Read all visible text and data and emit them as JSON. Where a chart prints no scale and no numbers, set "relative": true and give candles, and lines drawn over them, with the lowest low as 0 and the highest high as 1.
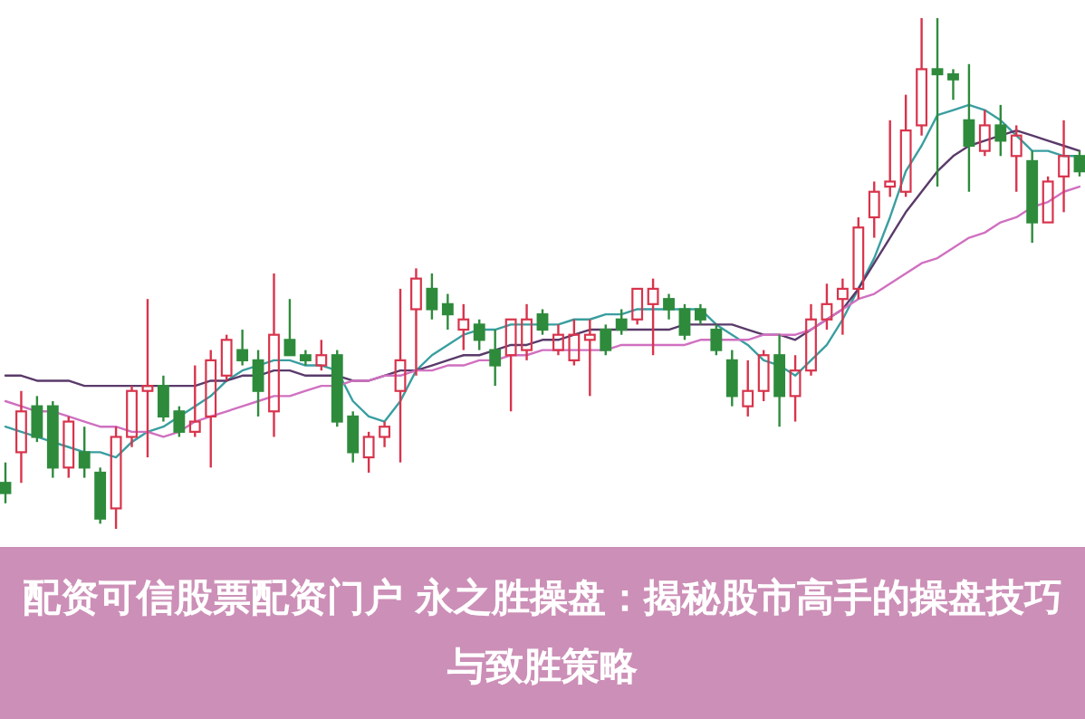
{
  "chart_data": {
    "type": "candlestick",
    "title": "配资可信股票配资门户 永之胜操盘：揭秘股市高手的操盘技巧与致胜策略",
    "relative": true,
    "categories": [
      null,
      null,
      null,
      null,
      null,
      null,
      null,
      null,
      null,
      null,
      null,
      null,
      null,
      null,
      null,
      null,
      null,
      null,
      null,
      null,
      null,
      null,
      null,
      null,
      null,
      null,
      null,
      null,
      null,
      null,
      null,
      null,
      null,
      null,
      null,
      null,
      null,
      null,
      null,
      null,
      null,
      null,
      null,
      null,
      null,
      null,
      null,
      null,
      null,
      null,
      null,
      null,
      null,
      null,
      null,
      null,
      null,
      null,
      null,
      null,
      null,
      null,
      null,
      null,
      null,
      null,
      null,
      null,
      null
    ],
    "ohlc": [
      [
        0.09,
        0.13,
        0.05,
        0.07
      ],
      [
        0.15,
        0.27,
        0.09,
        0.23
      ],
      [
        0.24,
        0.26,
        0.17,
        0.18
      ],
      [
        0.24,
        0.25,
        0.1,
        0.12
      ],
      [
        0.12,
        0.22,
        0.1,
        0.21
      ],
      [
        0.15,
        0.2,
        0.1,
        0.12
      ],
      [
        0.11,
        0.12,
        0.01,
        0.02
      ],
      [
        0.04,
        0.2,
        0,
        0.18
      ],
      [
        0.18,
        0.28,
        0.16,
        0.27
      ],
      [
        0.27,
        0.45,
        0.14,
        0.28
      ],
      [
        0.28,
        0.3,
        0.21,
        0.22
      ],
      [
        0.23,
        0.24,
        0.18,
        0.19
      ],
      [
        0.19,
        0.32,
        0.18,
        0.21
      ],
      [
        0.22,
        0.35,
        0.12,
        0.33
      ],
      [
        0.3,
        0.38,
        0.29,
        0.37
      ],
      [
        0.35,
        0.39,
        0.32,
        0.33
      ],
      [
        0.33,
        0.35,
        0.22,
        0.27
      ],
      [
        0.23,
        0.5,
        0.18,
        0.38
      ],
      [
        0.37,
        0.45,
        0.34,
        0.34
      ],
      [
        0.34,
        0.35,
        0.32,
        0.33
      ],
      [
        0.32,
        0.37,
        0.31,
        0.34
      ],
      [
        0.34,
        0.35,
        0.2,
        0.21
      ],
      [
        0.22,
        0.23,
        0.13,
        0.15
      ],
      [
        0.14,
        0.19,
        0.11,
        0.18
      ],
      [
        0.18,
        0.21,
        0.16,
        0.2
      ],
      [
        0.27,
        0.47,
        0.13,
        0.33
      ],
      [
        0.43,
        0.51,
        0.3,
        0.49
      ],
      [
        0.47,
        0.5,
        0.41,
        0.43
      ],
      [
        0.44,
        0.46,
        0.39,
        0.42
      ],
      [
        0.39,
        0.44,
        0.35,
        0.41
      ],
      [
        0.4,
        0.41,
        0.35,
        0.37
      ],
      [
        0.35,
        0.39,
        0.28,
        0.32
      ],
      [
        0.34,
        0.41,
        0.23,
        0.41
      ],
      [
        0.35,
        0.44,
        0.33,
        0.41
      ],
      [
        0.42,
        0.43,
        0.38,
        0.39
      ],
      [
        0.35,
        0.4,
        0.34,
        0.38
      ],
      [
        0.33,
        0.41,
        0.32,
        0.38
      ],
      [
        0.37,
        0.41,
        0.26,
        0.38
      ],
      [
        0.39,
        0.4,
        0.34,
        0.35
      ],
      [
        0.41,
        0.43,
        0.38,
        0.39
      ],
      [
        0.41,
        0.47,
        0.4,
        0.47
      ],
      [
        0.44,
        0.49,
        0.34,
        0.47
      ],
      [
        0.45,
        0.46,
        0.41,
        0.43
      ],
      [
        0.43,
        0.44,
        0.37,
        0.38
      ],
      [
        0.43,
        0.44,
        0.4,
        0.41
      ],
      [
        0.39,
        0.4,
        0.34,
        0.35
      ],
      [
        0.33,
        0.35,
        0.24,
        0.26
      ],
      [
        0.24,
        0.33,
        0.22,
        0.27
      ],
      [
        0.27,
        0.35,
        0.25,
        0.34
      ],
      [
        0.34,
        0.38,
        0.2,
        0.26
      ],
      [
        0.26,
        0.34,
        0.21,
        0.31
      ],
      [
        0.31,
        0.44,
        0.3,
        0.41
      ],
      [
        0.41,
        0.48,
        0.39,
        0.44
      ],
      [
        0.45,
        0.49,
        0.38,
        0.47
      ],
      [
        0.47,
        0.61,
        0.45,
        0.59
      ],
      [
        0.61,
        0.68,
        0.57,
        0.66
      ],
      [
        0.67,
        0.8,
        0.65,
        0.68
      ],
      [
        0.66,
        0.85,
        0.65,
        0.78
      ],
      [
        0.79,
        1,
        0.77,
        0.9
      ],
      [
        0.9,
        1,
        0.67,
        0.89
      ],
      [
        0.89,
        0.9,
        0.84,
        0.88
      ],
      [
        0.8,
        0.91,
        0.66,
        0.75
      ],
      [
        0.74,
        0.82,
        0.73,
        0.79
      ],
      [
        0.79,
        0.83,
        0.73,
        0.76
      ],
      [
        0.73,
        0.79,
        0.66,
        0.77
      ],
      [
        0.72,
        0.74,
        0.56,
        0.6
      ],
      [
        0.6,
        0.69,
        0.6,
        0.68
      ],
      [
        0.69,
        0.8,
        0.62,
        0.73
      ],
      [
        0.73,
        0.74,
        0.69,
        0.7
      ]
    ],
    "series": [
      {
        "type": "line",
        "color": "#3a9ea0",
        "values": [
          0.2,
          0.19,
          0.18,
          0.17,
          0.16,
          0.15,
          0.15,
          0.14,
          0.17,
          0.19,
          0.2,
          0.22,
          0.24,
          0.26,
          0.29,
          0.31,
          0.32,
          0.33,
          0.33,
          0.32,
          0.32,
          0.31,
          0.25,
          0.22,
          0.21,
          0.25,
          0.31,
          0.34,
          0.36,
          0.38,
          0.39,
          0.39,
          0.4,
          0.4,
          0.4,
          0.4,
          0.41,
          0.41,
          0.42,
          0.42,
          0.43,
          0.43,
          0.43,
          0.43,
          0.43,
          0.4,
          0.38,
          0.36,
          0.33,
          0.32,
          0.3,
          0.33,
          0.36,
          0.41,
          0.47,
          0.53,
          0.61,
          0.7,
          0.75,
          0.81,
          0.82,
          0.83,
          0.82,
          0.8,
          0.77,
          0.74,
          0.74,
          0.73,
          0.73
        ]
      },
      {
        "type": "line",
        "color": "#5a3a6a",
        "values": [
          0.3,
          0.3,
          0.29,
          0.29,
          0.29,
          0.28,
          0.28,
          0.28,
          0.28,
          0.28,
          0.28,
          0.28,
          0.28,
          0.29,
          0.29,
          0.3,
          0.3,
          0.31,
          0.31,
          0.3,
          0.3,
          0.3,
          0.29,
          0.29,
          0.3,
          0.31,
          0.31,
          0.32,
          0.33,
          0.34,
          0.34,
          0.35,
          0.36,
          0.36,
          0.37,
          0.37,
          0.38,
          0.39,
          0.39,
          0.39,
          0.39,
          0.39,
          0.39,
          0.4,
          0.4,
          0.4,
          0.4,
          0.39,
          0.38,
          0.38,
          0.37,
          0.39,
          0.41,
          0.43,
          0.47,
          0.52,
          0.57,
          0.62,
          0.66,
          0.7,
          0.73,
          0.75,
          0.76,
          0.77,
          0.78,
          0.77,
          0.76,
          0.75,
          0.74
        ]
      },
      {
        "type": "line",
        "color": "#d070c0",
        "values": [
          0.25,
          0.24,
          0.23,
          0.23,
          0.22,
          0.21,
          0.2,
          0.2,
          0.19,
          0.19,
          0.18,
          0.19,
          0.21,
          0.22,
          0.23,
          0.24,
          0.25,
          0.26,
          0.26,
          0.27,
          0.28,
          0.28,
          0.29,
          0.29,
          0.3,
          0.3,
          0.31,
          0.31,
          0.32,
          0.32,
          0.33,
          0.33,
          0.34,
          0.34,
          0.35,
          0.35,
          0.35,
          0.35,
          0.35,
          0.36,
          0.36,
          0.36,
          0.36,
          0.36,
          0.37,
          0.37,
          0.37,
          0.37,
          0.38,
          0.38,
          0.38,
          0.39,
          0.41,
          0.43,
          0.45,
          0.46,
          0.48,
          0.5,
          0.52,
          0.53,
          0.55,
          0.57,
          0.58,
          0.6,
          0.61,
          0.63,
          0.64,
          0.66,
          0.67
        ]
      }
    ]
  }
}
